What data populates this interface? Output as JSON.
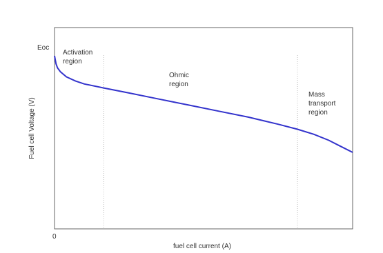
{
  "chart_data": {
    "type": "line",
    "title": "",
    "xlabel": "fuel cell current (A)",
    "ylabel": "Fuel cell Voltage (V)",
    "x_tick_labels": [
      "0"
    ],
    "y_tick_labels": [
      "Eoc"
    ],
    "xlim": [
      0,
      1
    ],
    "ylim": [
      0,
      1
    ],
    "grid": false,
    "region_dividers": [
      0.165,
      0.815
    ],
    "annotations": [
      {
        "text": "Activation region",
        "lines": [
          "Activation",
          "region"
        ]
      },
      {
        "text": "Ohmic region",
        "lines": [
          "Ohmic",
          "region"
        ]
      },
      {
        "text": "Mass transport region",
        "lines": [
          "Mass",
          "transport",
          "region"
        ]
      }
    ],
    "series": [
      {
        "color": "#3333cc",
        "x": [
          0,
          0.005,
          0.01,
          0.02,
          0.04,
          0.07,
          0.1,
          0.165,
          0.25,
          0.35,
          0.45,
          0.55,
          0.65,
          0.75,
          0.815,
          0.87,
          0.92,
          0.96,
          1.0
        ],
        "y": [
          0.86,
          0.82,
          0.8,
          0.78,
          0.755,
          0.735,
          0.72,
          0.7,
          0.675,
          0.645,
          0.615,
          0.585,
          0.555,
          0.52,
          0.495,
          0.47,
          0.44,
          0.41,
          0.38
        ]
      }
    ]
  }
}
